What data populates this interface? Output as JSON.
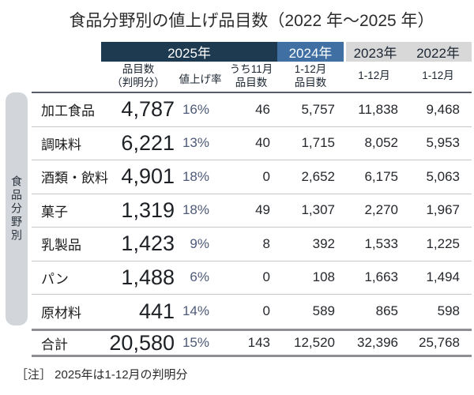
{
  "title": "食品分野別の値上げ品目数（2022 年～2025 年）",
  "side_label": "食品分野別",
  "note": "［注］ 2025年は1-12月の判明分",
  "colors": {
    "band_2025": "#1e3a50",
    "band_2024": "#3f6fa3",
    "band_prev_years": "#d8d8d8",
    "percent_text": "#4d5a78",
    "side_pill": "#d2d6da"
  },
  "header": {
    "y2025": "2025年",
    "y2024": "2024年",
    "y2023": "2023年",
    "y2022": "2022年",
    "c1": "品目数\n（判明分）",
    "c2": "値上げ率",
    "c3": "うち11月\n品目数",
    "c4": "1-12月\n品目数",
    "c5": "1-12月",
    "c6": "1-12月"
  },
  "rows": [
    {
      "name": "加工食品",
      "items": "4,787",
      "rate": "16%",
      "nov": "46",
      "y2024": "5,757",
      "y2023": "11,838",
      "y2022": "9,468"
    },
    {
      "name": "調味料",
      "items": "6,221",
      "rate": "13%",
      "nov": "40",
      "y2024": "1,715",
      "y2023": "8,052",
      "y2022": "5,953"
    },
    {
      "name": "酒類・飲料",
      "items": "4,901",
      "rate": "18%",
      "nov": "0",
      "y2024": "2,652",
      "y2023": "6,175",
      "y2022": "5,063"
    },
    {
      "name": "菓子",
      "items": "1,319",
      "rate": "18%",
      "nov": "49",
      "y2024": "1,307",
      "y2023": "2,270",
      "y2022": "1,967"
    },
    {
      "name": "乳製品",
      "items": "1,423",
      "rate": "9%",
      "nov": "8",
      "y2024": "392",
      "y2023": "1,533",
      "y2022": "1,225"
    },
    {
      "name": "パン",
      "items": "1,488",
      "rate": "6%",
      "nov": "0",
      "y2024": "108",
      "y2023": "1,663",
      "y2022": "1,494"
    },
    {
      "name": "原材料",
      "items": "441",
      "rate": "14%",
      "nov": "0",
      "y2024": "589",
      "y2023": "865",
      "y2022": "598"
    }
  ],
  "total": {
    "name": "合計",
    "items": "20,580",
    "rate": "15%",
    "nov": "143",
    "y2024": "12,520",
    "y2023": "32,396",
    "y2022": "25,768"
  },
  "chart_data": {
    "type": "table",
    "title": "食品分野別の値上げ品目数（2022年～2025年）",
    "row_axis_label": "食品分野別",
    "column_groups": [
      {
        "label": "2025年",
        "columns": [
          "品目数（判明分）",
          "値上げ率",
          "うち11月品目数"
        ]
      },
      {
        "label": "2024年",
        "columns": [
          "1-12月品目数"
        ]
      },
      {
        "label": "2023年",
        "columns": [
          "1-12月"
        ]
      },
      {
        "label": "2022年",
        "columns": [
          "1-12月"
        ]
      }
    ],
    "rows": [
      {
        "category": "加工食品",
        "items_2025": 4787,
        "rate_2025": "16%",
        "nov_2025": 46,
        "items_2024": 5757,
        "items_2023": 11838,
        "items_2022": 9468
      },
      {
        "category": "調味料",
        "items_2025": 6221,
        "rate_2025": "13%",
        "nov_2025": 40,
        "items_2024": 1715,
        "items_2023": 8052,
        "items_2022": 5953
      },
      {
        "category": "酒類・飲料",
        "items_2025": 4901,
        "rate_2025": "18%",
        "nov_2025": 0,
        "items_2024": 2652,
        "items_2023": 6175,
        "items_2022": 5063
      },
      {
        "category": "菓子",
        "items_2025": 1319,
        "rate_2025": "18%",
        "nov_2025": 49,
        "items_2024": 1307,
        "items_2023": 2270,
        "items_2022": 1967
      },
      {
        "category": "乳製品",
        "items_2025": 1423,
        "rate_2025": "9%",
        "nov_2025": 8,
        "items_2024": 392,
        "items_2023": 1533,
        "items_2022": 1225
      },
      {
        "category": "パン",
        "items_2025": 1488,
        "rate_2025": "6%",
        "nov_2025": 0,
        "items_2024": 108,
        "items_2023": 1663,
        "items_2022": 1494
      },
      {
        "category": "原材料",
        "items_2025": 441,
        "rate_2025": "14%",
        "nov_2025": 0,
        "items_2024": 589,
        "items_2023": 865,
        "items_2022": 598
      }
    ],
    "total": {
      "category": "合計",
      "items_2025": 20580,
      "rate_2025": "15%",
      "nov_2025": 143,
      "items_2024": 12520,
      "items_2023": 32396,
      "items_2022": 25768
    },
    "note": "2025年は1-12月の判明分"
  }
}
